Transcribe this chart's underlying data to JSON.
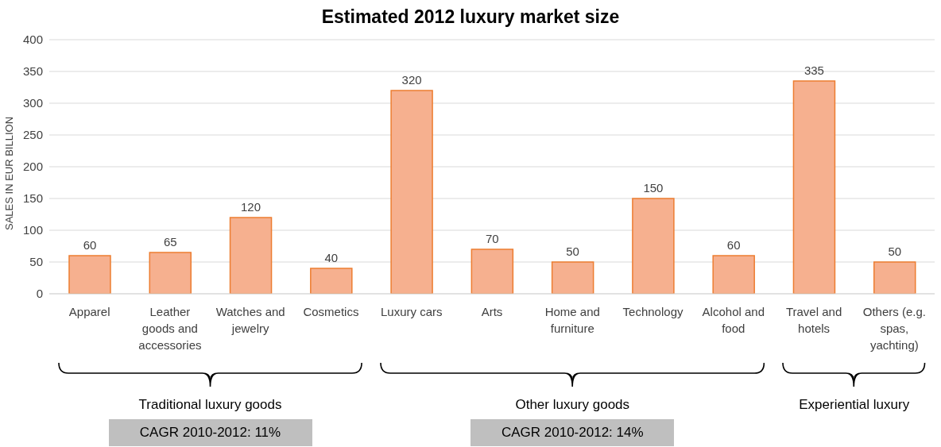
{
  "chart_data": {
    "type": "bar",
    "title": "Estimated 2012 luxury market size",
    "ylabel": "SALES IN EUR BILLION",
    "categories": [
      "Apparel",
      "Leather goods and accessories",
      "Watches and jewelry",
      "Cosmetics",
      "Luxury cars",
      "Arts",
      "Home and furniture",
      "Technology",
      "Alcohol and food",
      "Travel and hotels",
      "Others (e.g. spas, yachting)"
    ],
    "values": [
      60,
      65,
      120,
      40,
      320,
      70,
      50,
      150,
      60,
      335,
      50
    ],
    "color": "#f6b08f",
    "ylim": [
      0,
      400
    ],
    "yticks": [
      0,
      50,
      100,
      150,
      200,
      250,
      300,
      350,
      400
    ],
    "grid": "y",
    "data_labels": true,
    "annotations": [
      "Traditional luxury goods",
      "Other luxury goods",
      "Experiential luxury",
      "CAGR 2010-2012: 11%",
      "CAGR 2010-2012: 14%"
    ]
  }
}
